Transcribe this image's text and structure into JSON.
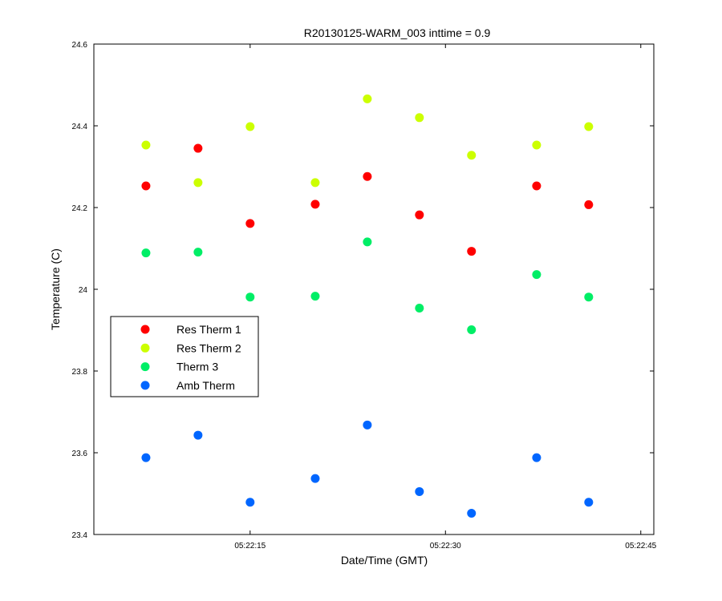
{
  "chart_data": {
    "type": "scatter",
    "title": "R20130125-WARM_003 inttime = 0.9",
    "xlabel": "Date/Time (GMT)",
    "ylabel": "Temperature (C)",
    "xlim": [
      "05:22:03",
      "05:22:46"
    ],
    "x_ticks": [
      "05:22:15",
      "05:22:30",
      "05:22:45"
    ],
    "ylim": [
      23.4,
      24.6
    ],
    "y_ticks": [
      23.4,
      23.6,
      23.8,
      24,
      24.2,
      24.4,
      24.6
    ],
    "y_tick_labels": [
      "23.4",
      "23.6",
      "23.8",
      "24",
      "24.2",
      "24.4",
      "24.6"
    ],
    "grid": false,
    "legend_position": "middle-left",
    "x": [
      "05:22:07",
      "05:22:11",
      "05:22:15",
      "05:22:20",
      "05:22:24",
      "05:22:28",
      "05:22:32",
      "05:22:37",
      "05:22:41"
    ],
    "series": [
      {
        "name": "Res Therm 1",
        "color": "#ff0000",
        "values": [
          24.253,
          24.345,
          24.161,
          24.208,
          24.276,
          24.182,
          24.093,
          24.253,
          24.207
        ]
      },
      {
        "name": "Res Therm 2",
        "color": "#ccff00",
        "values": [
          24.353,
          24.261,
          24.398,
          24.261,
          24.466,
          24.42,
          24.328,
          24.353,
          24.398
        ]
      },
      {
        "name": "Therm 3",
        "color": "#00ee66",
        "values": [
          24.089,
          24.091,
          23.981,
          23.983,
          24.116,
          23.954,
          23.901,
          24.036,
          23.981
        ]
      },
      {
        "name": "Amb Therm",
        "color": "#0066ff",
        "values": [
          23.588,
          23.643,
          23.479,
          23.537,
          23.668,
          23.505,
          23.452,
          23.588,
          23.479
        ]
      }
    ]
  }
}
